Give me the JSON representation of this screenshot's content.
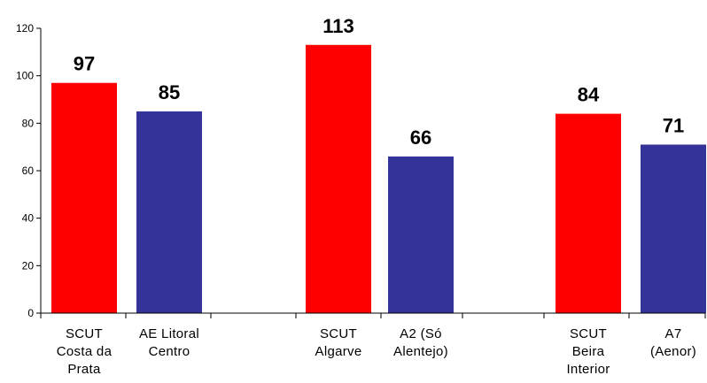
{
  "chart_data": {
    "type": "bar",
    "categories": [
      [
        "SCUT",
        "Costa da",
        "Prata"
      ],
      [
        "AE Litoral",
        "Centro"
      ],
      [
        "SCUT",
        "Algarve"
      ],
      [
        "A2 (Só",
        "Alentejo)"
      ],
      [
        "SCUT",
        "Beira",
        "Interior"
      ],
      [
        "A7",
        "(Aenor)"
      ]
    ],
    "values": [
      97,
      85,
      113,
      66,
      84,
      71
    ],
    "data_labels": [
      "97",
      "85",
      "113",
      "66",
      "84",
      "71"
    ],
    "bar_colors": [
      "#ff0000",
      "#333399",
      "#ff0000",
      "#333399",
      "#ff0000",
      "#333399"
    ],
    "y_ticks": [
      "0",
      "20",
      "40",
      "60",
      "80",
      "100",
      "120"
    ],
    "ylim": [
      0,
      120
    ],
    "grid": false,
    "legend": "none",
    "title": "",
    "xlabel": "",
    "ylabel": ""
  }
}
